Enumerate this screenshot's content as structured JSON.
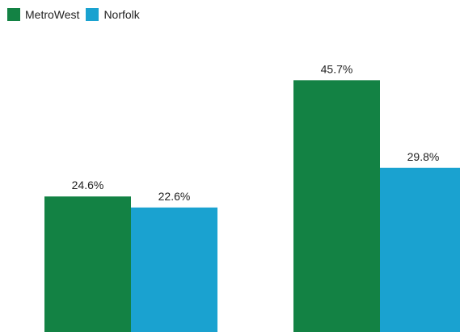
{
  "legend": {
    "items": [
      {
        "label": "MetroWest",
        "color": "#138244"
      },
      {
        "label": "Norfolk",
        "color": "#1aa2d0"
      }
    ]
  },
  "chart_data": {
    "type": "bar",
    "categories": [
      "",
      ""
    ],
    "series": [
      {
        "name": "MetroWest",
        "color": "#138244",
        "values": [
          24.6,
          45.7
        ],
        "labels": [
          "24.6%",
          "45.7%"
        ]
      },
      {
        "name": "Norfolk",
        "color": "#1aa2d0",
        "values": [
          22.6,
          29.8
        ],
        "labels": [
          "22.6%",
          "29.8%"
        ]
      }
    ],
    "value_unit": "%",
    "xlabel": "",
    "ylabel": "",
    "legend_position": "top-left",
    "grid": false,
    "data_labels": true
  }
}
